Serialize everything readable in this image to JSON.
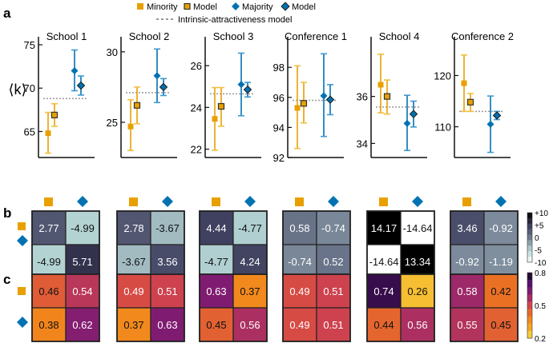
{
  "legend": {
    "minority": "Minority",
    "minority_model": "Model",
    "majority": "Majority",
    "majority_model": "Model",
    "intrinsic": "Intrinsic-attractiveness model"
  },
  "colors": {
    "minority": "#E8A000",
    "minority_light": "#F2C040",
    "majority": "#0072B2",
    "majority_light": "#3D9AD0",
    "intrinsic": "#999999"
  },
  "panel_labels": {
    "a": "a",
    "b": "b",
    "c": "c"
  },
  "chart_data": [
    {
      "type": "scatter",
      "panel": "a",
      "ylabel": "⟨k⟩",
      "description": "Mean degree with error bars for minority/majority, empirical vs model, and intrinsic-attractiveness model line",
      "subplots": [
        {
          "title": "School 1",
          "ylim": [
            62,
            75
          ],
          "yticks": [
            65,
            70,
            75
          ],
          "minority": {
            "y": 64.8,
            "lo": 62.5,
            "hi": 67.2
          },
          "minority_model": {
            "y": 66.9,
            "lo": 65.6,
            "hi": 68.2
          },
          "majority": {
            "y": 72.0,
            "lo": 69.7,
            "hi": 74.4
          },
          "majority_model": {
            "y": 70.3,
            "lo": 69.2,
            "hi": 71.4
          },
          "intrinsic": 68.8
        },
        {
          "title": "School 2",
          "ylim": [
            22.5,
            30.5
          ],
          "yticks": [
            25,
            30
          ],
          "minority": {
            "y": 24.7,
            "lo": 23.0,
            "hi": 26.6
          },
          "minority_model": {
            "y": 26.2,
            "lo": 24.9,
            "hi": 27.5
          },
          "majority": {
            "y": 28.3,
            "lo": 26.4,
            "hi": 30.2
          },
          "majority_model": {
            "y": 27.5,
            "lo": 26.9,
            "hi": 28.1
          },
          "intrinsic": 27.1
        },
        {
          "title": "School 3",
          "ylim": [
            21.6,
            27.0
          ],
          "yticks": [
            22,
            24,
            26
          ],
          "minority": {
            "y": 23.45,
            "lo": 21.95,
            "hi": 24.95
          },
          "minority_model": {
            "y": 24.05,
            "lo": 23.1,
            "hi": 24.95
          },
          "majority": {
            "y": 25.1,
            "lo": 23.6,
            "hi": 26.6
          },
          "majority_model": {
            "y": 24.85,
            "lo": 24.5,
            "hi": 25.2
          },
          "intrinsic": 24.65
        },
        {
          "title": "Conference 1",
          "ylim": [
            92,
            99.5
          ],
          "yticks": [
            92,
            94,
            96,
            98
          ],
          "minority": {
            "y": 95.3,
            "lo": 92.6,
            "hi": 98.1
          },
          "minority_model": {
            "y": 95.6,
            "lo": 94.3,
            "hi": 97.0
          },
          "majority": {
            "y": 96.1,
            "lo": 93.4,
            "hi": 98.9
          },
          "majority_model": {
            "y": 95.85,
            "lo": 94.85,
            "hi": 96.85
          },
          "intrinsic": 95.8
        },
        {
          "title": "School 4",
          "ylim": [
            33.4,
            38.2
          ],
          "yticks": [
            34,
            36
          ],
          "minority": {
            "y": 36.5,
            "lo": 35.3,
            "hi": 37.8
          },
          "minority_model": {
            "y": 36.0,
            "lo": 35.25,
            "hi": 36.7
          },
          "majority": {
            "y": 34.85,
            "lo": 33.7,
            "hi": 36.05
          },
          "majority_model": {
            "y": 35.25,
            "lo": 34.7,
            "hi": 35.8
          },
          "intrinsic": 35.55
        },
        {
          "title": "Conference 2",
          "ylim": [
            104,
            126
          ],
          "yticks": [
            110,
            120
          ],
          "minority": {
            "y": 118.5,
            "lo": 113.0,
            "hi": 124.0
          },
          "minority_model": {
            "y": 114.8,
            "lo": 113.0,
            "hi": 116.5
          },
          "majority": {
            "y": 110.5,
            "lo": 105.0,
            "hi": 116.0
          },
          "majority_model": {
            "y": 112.2,
            "lo": 111.4,
            "hi": 113.0
          },
          "intrinsic": 113.0
        }
      ]
    },
    {
      "type": "heatmap",
      "panel": "b",
      "colorbar": {
        "range": [
          -10,
          10
        ],
        "ticks": [
          "+10",
          "+5",
          "0",
          "-5",
          "-10"
        ]
      },
      "row_labels": [
        "minority",
        "majority"
      ],
      "col_labels": [
        "minority",
        "majority"
      ],
      "matrices": [
        [
          [
            "2.77",
            "-4.99"
          ],
          [
            "-4.99",
            "5.71"
          ]
        ],
        [
          [
            "2.78",
            "-3.67"
          ],
          [
            "-3.67",
            "3.56"
          ]
        ],
        [
          [
            "4.44",
            "-4.77"
          ],
          [
            "-4.77",
            "4.24"
          ]
        ],
        [
          [
            "0.58",
            "-0.74"
          ],
          [
            "-0.74",
            "0.52"
          ]
        ],
        [
          [
            "14.17",
            "-14.64"
          ],
          [
            "-14.64",
            "13.34"
          ]
        ],
        [
          [
            "3.46",
            "-0.92"
          ],
          [
            "-0.92",
            "-1.19"
          ]
        ]
      ]
    },
    {
      "type": "heatmap",
      "panel": "c",
      "colorbar": {
        "range": [
          0.2,
          0.8
        ],
        "ticks": [
          "0.8",
          "0.5",
          "0.2"
        ]
      },
      "row_labels": [
        "minority",
        "majority"
      ],
      "col_labels": [
        "minority",
        "majority"
      ],
      "matrices": [
        [
          [
            "0.46",
            "0.54"
          ],
          [
            "0.38",
            "0.62"
          ]
        ],
        [
          [
            "0.49",
            "0.51"
          ],
          [
            "0.37",
            "0.63"
          ]
        ],
        [
          [
            "0.63",
            "0.37"
          ],
          [
            "0.45",
            "0.56"
          ]
        ],
        [
          [
            "0.49",
            "0.51"
          ],
          [
            "0.49",
            "0.51"
          ]
        ],
        [
          [
            "0.74",
            "0.26"
          ],
          [
            "0.44",
            "0.56"
          ]
        ],
        [
          [
            "0.58",
            "0.42"
          ],
          [
            "0.55",
            "0.45"
          ]
        ]
      ]
    }
  ]
}
